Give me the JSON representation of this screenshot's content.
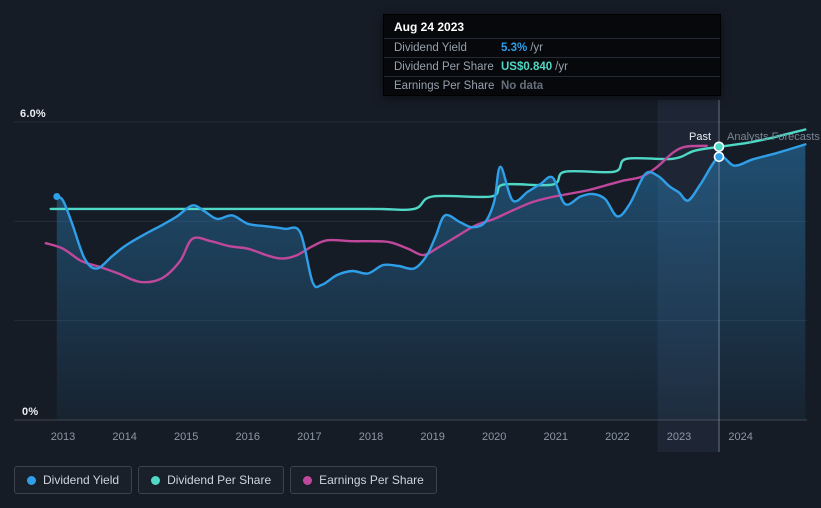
{
  "colors": {
    "background": "#161c26",
    "dividend_yield": "#2f9fe8",
    "dividend_per_share": "#4fd8c6",
    "earnings_per_share": "#c0489c",
    "axis_text": "#8d98a5",
    "bright_text": "#e9eef3",
    "muted_text": "#67707c"
  },
  "tooltip": {
    "date": "Aug 24 2023",
    "rows": [
      {
        "label": "Dividend Yield",
        "value": "5.3%",
        "suffix": " /yr",
        "value_color": "#2f9fe8"
      },
      {
        "label": "Dividend Per Share",
        "value": "US$0.840",
        "suffix": " /yr",
        "value_color": "#4fd8c6"
      },
      {
        "label": "Earnings Per Share",
        "value": "No data",
        "suffix": "",
        "value_color": "#67707c"
      }
    ]
  },
  "axis": {
    "y_top_label": "6.0%",
    "y_bottom_label": "0%",
    "x_labels": [
      "2013",
      "2014",
      "2015",
      "2016",
      "2017",
      "2018",
      "2019",
      "2020",
      "2021",
      "2022",
      "2023",
      "2024"
    ]
  },
  "annotations": {
    "past_label": "Past",
    "forecast_label": "Analysts Forecasts"
  },
  "legend": [
    {
      "label": "Dividend Yield",
      "color": "#2f9fe8"
    },
    {
      "label": "Dividend Per Share",
      "color": "#4fd8c6"
    },
    {
      "label": "Earnings Per Share",
      "color": "#c0489c"
    }
  ],
  "chart_data": {
    "type": "line",
    "title": "Dividend yield history and forecast",
    "x_axis": {
      "range": [
        2012.7,
        2025.1
      ],
      "ticks": [
        2013,
        2014,
        2015,
        2016,
        2017,
        2018,
        2019,
        2020,
        2021,
        2022,
        2023,
        2024
      ]
    },
    "y_axis": {
      "range": [
        0,
        6.4
      ],
      "unit": "%",
      "gridlines": [
        0,
        2,
        4,
        6
      ],
      "tick_labels": [
        {
          "value": 6.0,
          "text": "6.0%"
        },
        {
          "value": 0,
          "text": "0%"
        }
      ]
    },
    "past_divider_x": 2023.65,
    "highlight_band": {
      "from": 2022.65,
      "to": 2023.65
    },
    "tooltip_point": {
      "date": "Aug 24 2023",
      "dividend_yield_pct": 5.3,
      "dividend_per_share_usd": 0.84,
      "earnings_per_share": null
    },
    "series": [
      {
        "name": "Dividend Yield",
        "color": "#2f9fe8",
        "area": true,
        "points": [
          [
            2012.9,
            4.5
          ],
          [
            2013.0,
            4.42
          ],
          [
            2013.15,
            3.95
          ],
          [
            2013.35,
            3.25
          ],
          [
            2013.55,
            3.05
          ],
          [
            2013.8,
            3.3
          ],
          [
            2014.0,
            3.5
          ],
          [
            2014.3,
            3.72
          ],
          [
            2014.6,
            3.92
          ],
          [
            2014.85,
            4.1
          ],
          [
            2015.1,
            4.32
          ],
          [
            2015.3,
            4.2
          ],
          [
            2015.5,
            4.05
          ],
          [
            2015.75,
            4.12
          ],
          [
            2016.0,
            3.95
          ],
          [
            2016.3,
            3.9
          ],
          [
            2016.6,
            3.85
          ],
          [
            2016.85,
            3.78
          ],
          [
            2017.05,
            2.78
          ],
          [
            2017.2,
            2.72
          ],
          [
            2017.45,
            2.92
          ],
          [
            2017.7,
            3.0
          ],
          [
            2017.95,
            2.95
          ],
          [
            2018.2,
            3.12
          ],
          [
            2018.45,
            3.1
          ],
          [
            2018.7,
            3.05
          ],
          [
            2018.9,
            3.3
          ],
          [
            2019.05,
            3.7
          ],
          [
            2019.2,
            4.12
          ],
          [
            2019.45,
            3.98
          ],
          [
            2019.65,
            3.88
          ],
          [
            2019.85,
            3.98
          ],
          [
            2020.0,
            4.4
          ],
          [
            2020.1,
            5.1
          ],
          [
            2020.3,
            4.42
          ],
          [
            2020.55,
            4.6
          ],
          [
            2020.75,
            4.75
          ],
          [
            2020.95,
            4.88
          ],
          [
            2021.15,
            4.35
          ],
          [
            2021.4,
            4.5
          ],
          [
            2021.6,
            4.55
          ],
          [
            2021.8,
            4.45
          ],
          [
            2022.0,
            4.1
          ],
          [
            2022.2,
            4.35
          ],
          [
            2022.45,
            4.95
          ],
          [
            2022.65,
            4.92
          ],
          [
            2022.85,
            4.7
          ],
          [
            2023.0,
            4.58
          ],
          [
            2023.15,
            4.42
          ],
          [
            2023.35,
            4.75
          ],
          [
            2023.65,
            5.3
          ],
          [
            2023.9,
            5.12
          ],
          [
            2024.2,
            5.25
          ],
          [
            2024.6,
            5.38
          ],
          [
            2025.05,
            5.55
          ]
        ]
      },
      {
        "name": "Dividend Per Share",
        "color": "#4fd8c6",
        "area": false,
        "points": [
          [
            2012.8,
            4.25
          ],
          [
            2014.0,
            4.25
          ],
          [
            2016.0,
            4.25
          ],
          [
            2018.0,
            4.25
          ],
          [
            2018.7,
            4.25
          ],
          [
            2019.0,
            4.5
          ],
          [
            2019.95,
            4.5
          ],
          [
            2020.15,
            4.74
          ],
          [
            2020.95,
            4.74
          ],
          [
            2021.15,
            5.0
          ],
          [
            2021.95,
            5.0
          ],
          [
            2022.15,
            5.26
          ],
          [
            2022.9,
            5.26
          ],
          [
            2023.25,
            5.42
          ],
          [
            2023.65,
            5.5
          ],
          [
            2024.1,
            5.58
          ],
          [
            2024.5,
            5.68
          ],
          [
            2025.05,
            5.85
          ]
        ]
      },
      {
        "name": "Earnings Per Share",
        "color": "#c0489c",
        "area": false,
        "points": [
          [
            2012.72,
            3.56
          ],
          [
            2013.0,
            3.45
          ],
          [
            2013.3,
            3.2
          ],
          [
            2013.6,
            3.08
          ],
          [
            2013.9,
            2.95
          ],
          [
            2014.25,
            2.78
          ],
          [
            2014.6,
            2.85
          ],
          [
            2014.9,
            3.2
          ],
          [
            2015.1,
            3.65
          ],
          [
            2015.4,
            3.6
          ],
          [
            2015.7,
            3.5
          ],
          [
            2016.0,
            3.45
          ],
          [
            2016.3,
            3.32
          ],
          [
            2016.55,
            3.25
          ],
          [
            2016.8,
            3.32
          ],
          [
            2017.05,
            3.5
          ],
          [
            2017.3,
            3.62
          ],
          [
            2017.7,
            3.6
          ],
          [
            2018.0,
            3.6
          ],
          [
            2018.3,
            3.58
          ],
          [
            2018.6,
            3.45
          ],
          [
            2018.85,
            3.32
          ],
          [
            2019.1,
            3.48
          ],
          [
            2019.4,
            3.7
          ],
          [
            2019.7,
            3.92
          ],
          [
            2020.0,
            4.05
          ],
          [
            2020.3,
            4.22
          ],
          [
            2020.6,
            4.38
          ],
          [
            2020.9,
            4.48
          ],
          [
            2021.2,
            4.55
          ],
          [
            2021.5,
            4.62
          ],
          [
            2021.8,
            4.72
          ],
          [
            2022.1,
            4.82
          ],
          [
            2022.4,
            4.9
          ],
          [
            2022.65,
            5.1
          ],
          [
            2022.9,
            5.38
          ],
          [
            2023.1,
            5.5
          ],
          [
            2023.45,
            5.52
          ]
        ]
      }
    ],
    "markers": [
      {
        "x": 2012.9,
        "y": 4.5,
        "color": "#2f9fe8",
        "r": 3.5,
        "ring": false
      },
      {
        "x": 2023.65,
        "y": 5.5,
        "color": "#4fd8c6",
        "r": 4.5,
        "ring": true
      },
      {
        "x": 2023.65,
        "y": 5.3,
        "color": "#2f9fe8",
        "r": 4.5,
        "ring": true
      }
    ]
  }
}
